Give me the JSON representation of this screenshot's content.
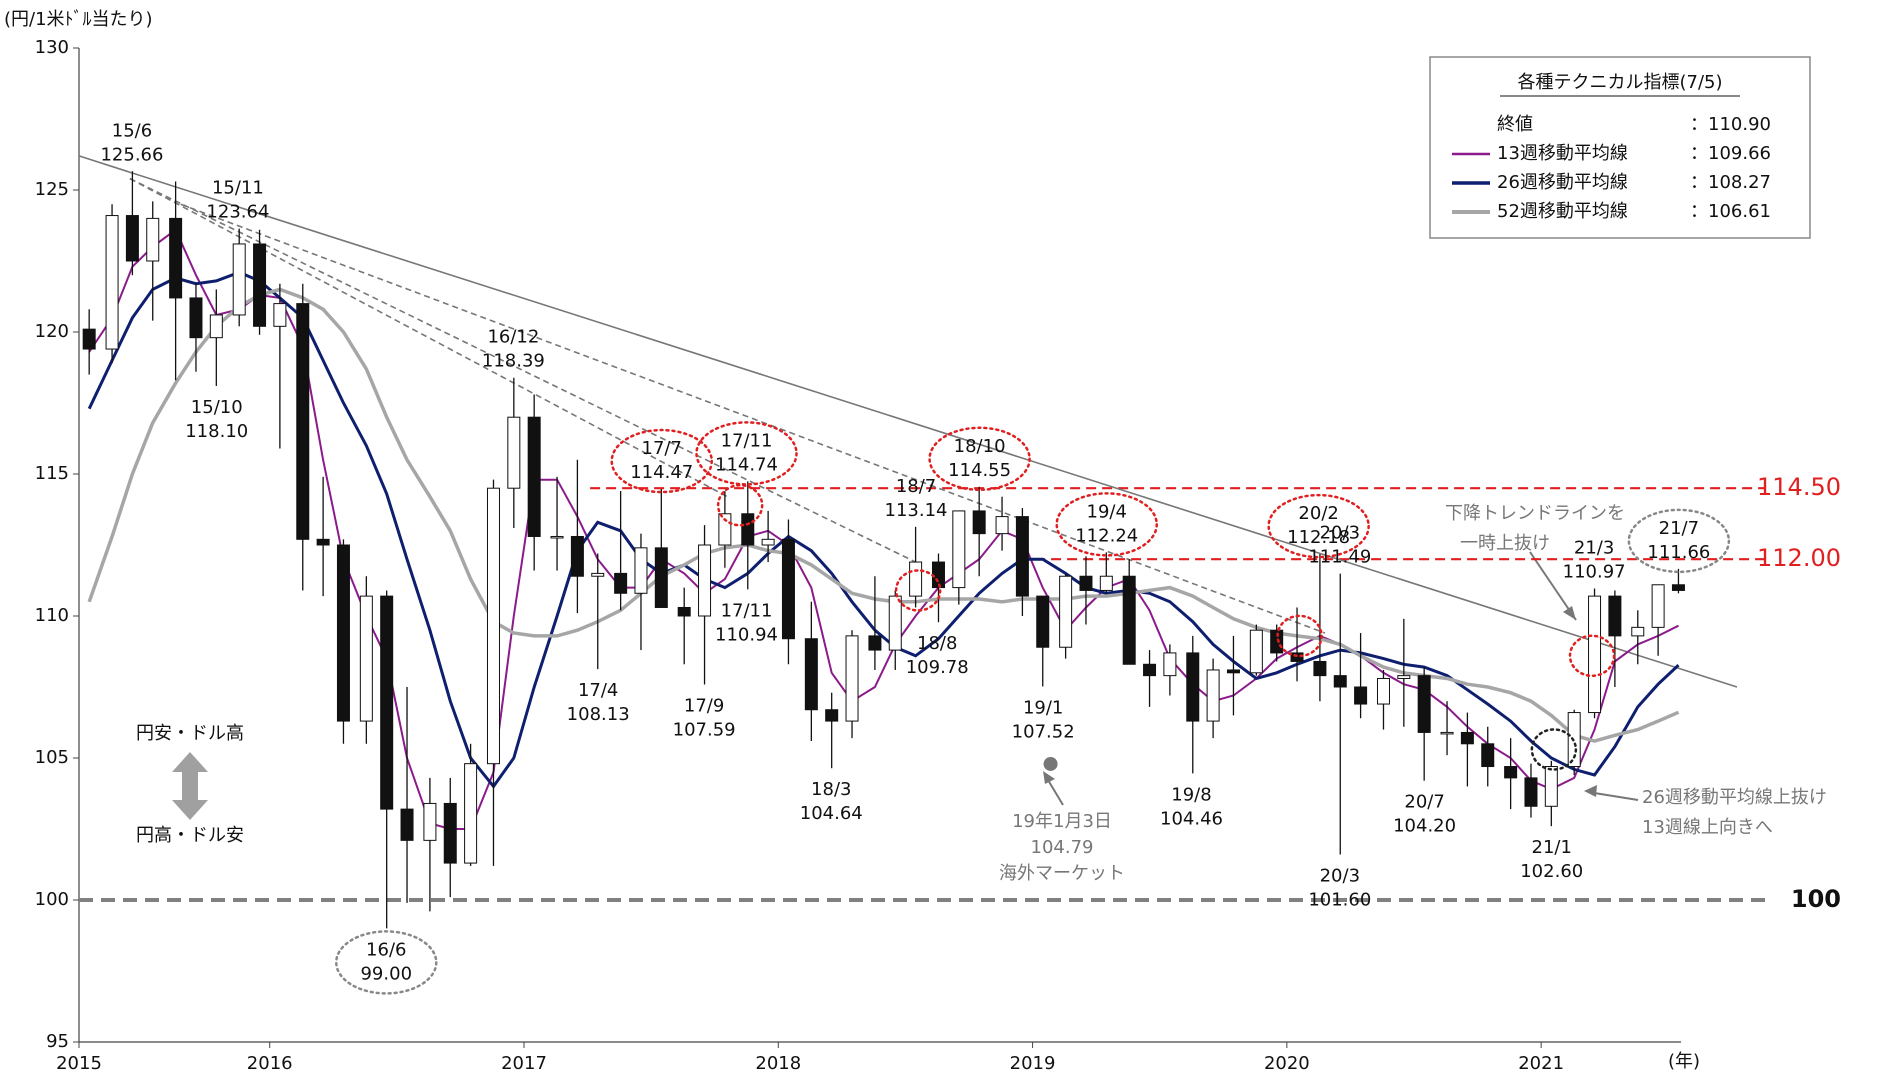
{
  "chart_data": {
    "type": "candlestick",
    "y_unit_label": "(円/1米ﾄﾞﾙ当たり)",
    "x_unit_label": "(年)",
    "xlim": [
      2015.25,
      2021.55
    ],
    "xticks": [
      {
        "value": 2015.25,
        "label": "2015"
      },
      2016,
      2017,
      2018,
      2019,
      2020,
      2021
    ],
    "ylim": [
      95,
      130
    ],
    "yticks": [
      95,
      100,
      105,
      110,
      115,
      120,
      125,
      130
    ],
    "x": [
      2015.29,
      2015.38,
      2015.46,
      2015.54,
      2015.63,
      2015.71,
      2015.79,
      2015.88,
      2015.96,
      2016.04,
      2016.13,
      2016.21,
      2016.29,
      2016.38,
      2016.46,
      2016.54,
      2016.63,
      2016.71,
      2016.79,
      2016.88,
      2016.96,
      2017.04,
      2017.13,
      2017.21,
      2017.29,
      2017.38,
      2017.46,
      2017.54,
      2017.63,
      2017.71,
      2017.79,
      2017.88,
      2017.96,
      2018.04,
      2018.13,
      2018.21,
      2018.29,
      2018.38,
      2018.46,
      2018.54,
      2018.63,
      2018.71,
      2018.79,
      2018.88,
      2018.96,
      2019.04,
      2019.13,
      2019.21,
      2019.29,
      2019.38,
      2019.46,
      2019.54,
      2019.63,
      2019.71,
      2019.79,
      2019.88,
      2019.96,
      2020.04,
      2020.13,
      2020.21,
      2020.29,
      2020.38,
      2020.46,
      2020.54,
      2020.63,
      2020.71,
      2020.79,
      2020.88,
      2020.96,
      2021.04,
      2021.13,
      2021.21,
      2021.29,
      2021.38,
      2021.46,
      2021.54
    ],
    "open": [
      120.1,
      119.4,
      124.1,
      122.5,
      124.0,
      121.2,
      119.8,
      120.6,
      123.1,
      120.2,
      121.0,
      112.7,
      112.5,
      106.3,
      110.7,
      103.2,
      102.1,
      103.4,
      101.3,
      104.8,
      114.5,
      117.0,
      112.8,
      112.8,
      111.4,
      111.5,
      110.8,
      112.4,
      110.3,
      110.0,
      112.5,
      113.6,
      112.5,
      112.7,
      109.2,
      106.7,
      106.3,
      109.3,
      108.8,
      110.7,
      111.9,
      111.0,
      113.7,
      112.9,
      113.5,
      110.7,
      108.9,
      111.4,
      110.9,
      111.4,
      108.3,
      107.9,
      108.7,
      106.3,
      108.1,
      108.0,
      109.5,
      108.7,
      108.4,
      107.9,
      107.5,
      106.9,
      107.8,
      107.9,
      105.9,
      105.9,
      105.5,
      104.7,
      104.3,
      103.3,
      104.7,
      106.6,
      110.7,
      109.3,
      109.6,
      111.1
    ],
    "high": [
      120.8,
      124.5,
      125.66,
      124.6,
      125.3,
      121.7,
      121.5,
      123.64,
      123.6,
      121.7,
      121.7,
      114.9,
      112.7,
      111.4,
      110.9,
      107.5,
      104.3,
      104.3,
      105.5,
      114.8,
      118.39,
      117.8,
      114.9,
      115.5,
      112.2,
      114.4,
      112.9,
      114.47,
      111.0,
      113.2,
      114.4,
      114.74,
      113.7,
      113.4,
      110.5,
      107.3,
      109.5,
      111.4,
      110.9,
      113.14,
      112.2,
      113.7,
      114.55,
      114.2,
      113.8,
      110.7,
      111.5,
      112.1,
      112.24,
      112.0,
      108.8,
      109.0,
      109.3,
      108.5,
      109.3,
      109.7,
      109.7,
      110.3,
      112.18,
      111.49,
      109.4,
      108.1,
      109.9,
      108.2,
      107.0,
      106.6,
      106.1,
      105.7,
      104.8,
      104.9,
      106.7,
      110.97,
      110.9,
      110.2,
      111.1,
      111.66
    ],
    "low": [
      118.5,
      118.9,
      122.0,
      120.4,
      118.3,
      118.6,
      118.1,
      120.2,
      119.9,
      115.9,
      110.9,
      110.7,
      105.5,
      105.5,
      99.0,
      99.9,
      99.6,
      100.1,
      101.2,
      101.2,
      113.1,
      111.6,
      111.6,
      110.1,
      108.13,
      110.2,
      108.8,
      110.6,
      108.3,
      107.59,
      111.7,
      110.94,
      111.9,
      108.3,
      105.6,
      104.64,
      105.7,
      108.1,
      108.1,
      110.3,
      109.78,
      110.4,
      111.4,
      112.3,
      110.0,
      107.52,
      108.5,
      109.7,
      110.8,
      108.3,
      106.8,
      107.2,
      104.46,
      105.7,
      106.5,
      107.9,
      108.4,
      107.7,
      107.0,
      101.6,
      106.4,
      106.0,
      106.1,
      104.2,
      105.1,
      104.0,
      104.0,
      103.2,
      102.9,
      102.6,
      104.4,
      106.4,
      107.5,
      108.3,
      108.6,
      110.8
    ],
    "close": [
      119.4,
      124.1,
      122.5,
      124.0,
      121.2,
      119.8,
      120.6,
      123.1,
      120.2,
      121.0,
      112.7,
      112.5,
      106.3,
      110.7,
      103.2,
      102.1,
      103.4,
      101.3,
      104.8,
      114.5,
      117.0,
      112.8,
      112.8,
      111.4,
      111.5,
      110.8,
      112.4,
      110.3,
      110.0,
      112.5,
      113.6,
      112.5,
      112.7,
      109.2,
      106.7,
      106.3,
      109.3,
      108.8,
      110.7,
      111.9,
      111.0,
      113.7,
      112.9,
      113.5,
      110.7,
      108.9,
      111.4,
      110.9,
      111.4,
      108.3,
      107.9,
      108.7,
      106.3,
      108.1,
      108.0,
      109.5,
      108.7,
      108.4,
      107.9,
      107.5,
      106.9,
      107.8,
      107.9,
      105.9,
      105.9,
      105.5,
      104.7,
      104.3,
      103.3,
      104.7,
      106.6,
      110.7,
      109.3,
      109.6,
      111.1,
      110.9
    ],
    "series": [
      {
        "name": "13週移動平均線",
        "color": "#8b1a8b",
        "width": 2,
        "latest": 109.66,
        "latest_label": "：109.66",
        "values": [
          119.3,
          120.5,
          122.3,
          123,
          123.6,
          122,
          120.6,
          120.8,
          121.3,
          121.2,
          119.5,
          115.5,
          112,
          110,
          108.5,
          105,
          102.7,
          102.5,
          102.5,
          104.5,
          110,
          114.8,
          114.8,
          113.5,
          112,
          111,
          111,
          112,
          111.5,
          110.8,
          111.3,
          112.8,
          113,
          112.5,
          111,
          108,
          107,
          107.5,
          109,
          110,
          111,
          111.5,
          112,
          113,
          112.7,
          111,
          109.5,
          110.3,
          111,
          111.3,
          110.2,
          108.5,
          107.6,
          107,
          107.2,
          107.8,
          108.5,
          108.9,
          109.3,
          109,
          108.6,
          108,
          107.6,
          107.4,
          106.8,
          106.1,
          105.5,
          105,
          104.2,
          103.9,
          104.3,
          106,
          108.4,
          109,
          109.3,
          109.66
        ]
      },
      {
        "name": "26週移動平均線",
        "color": "#0d1f6e",
        "width": 3,
        "latest": 108.27,
        "latest_label": "：108.27",
        "values": [
          117.3,
          119,
          120.5,
          121.5,
          121.9,
          121.7,
          121.8,
          122.1,
          121.8,
          121.2,
          120.5,
          119,
          117.5,
          116,
          114.3,
          112,
          109.5,
          107,
          105,
          104,
          105,
          107.5,
          110,
          112.3,
          113.3,
          113,
          112,
          111.5,
          111.8,
          111.3,
          111,
          111.5,
          112.2,
          112.8,
          112.3,
          111.5,
          110.5,
          109.5,
          108.9,
          108.6,
          109.2,
          110,
          110.8,
          111.5,
          112,
          112,
          111.5,
          111,
          110.8,
          110.9,
          110.8,
          110.5,
          109.8,
          109,
          108.4,
          107.8,
          108,
          108.3,
          108.6,
          108.8,
          108.7,
          108.5,
          108.3,
          108.2,
          107.9,
          107.4,
          106.9,
          106.3,
          105.6,
          105,
          104.6,
          104.4,
          105.4,
          106.8,
          107.6,
          108.27
        ]
      },
      {
        "name": "52週移動平均線",
        "color": "#a6a6a6",
        "width": 3.5,
        "latest": 106.61,
        "latest_label": "：106.61",
        "values": [
          110.5,
          112.8,
          115,
          116.8,
          118.2,
          119.3,
          120.2,
          120.9,
          121.3,
          121.5,
          121.2,
          120.8,
          120,
          118.7,
          117,
          115.5,
          114.2,
          113,
          111.3,
          109.8,
          109.4,
          109.3,
          109.3,
          109.5,
          109.8,
          110.2,
          110.8,
          111.4,
          111.8,
          112.2,
          112.4,
          112.5,
          112.3,
          112.2,
          111.8,
          111.3,
          110.8,
          110.6,
          110.5,
          110.5,
          110.6,
          110.6,
          110.6,
          110.5,
          110.6,
          110.6,
          110.6,
          110.7,
          110.7,
          110.8,
          110.9,
          111,
          110.7,
          110.3,
          109.9,
          109.6,
          109.4,
          109.3,
          109.2,
          109,
          108.6,
          108.2,
          108,
          107.9,
          107.8,
          107.6,
          107.5,
          107.3,
          107,
          106.5,
          105.8,
          105.6,
          105.8,
          106,
          106.3,
          106.61
        ]
      }
    ],
    "legend": {
      "title": "各種テクニカル指標(7/5)",
      "close_name": "終値",
      "close_value": 110.9,
      "close_label": "：110.90"
    },
    "highs": [
      {
        "date": "15/6",
        "value": 125.66,
        "label": "125.66"
      },
      {
        "date": "15/11",
        "value": 123.64,
        "label": "123.64"
      },
      {
        "date": "16/12",
        "value": 118.39,
        "label": "118.39"
      },
      {
        "date": "17/7",
        "value": 114.47,
        "label": "114.47",
        "circle": "#e02020"
      },
      {
        "date": "17/11",
        "value": 114.74,
        "label": "114.74",
        "circle": "#e02020"
      },
      {
        "date": "18/7",
        "value": 113.14,
        "label": "113.14"
      },
      {
        "date": "18/10",
        "value": 114.55,
        "label": "114.55",
        "circle": "#e02020"
      },
      {
        "date": "19/4",
        "value": 112.24,
        "label": "112.24",
        "circle": "#e02020"
      },
      {
        "date": "20/2",
        "value": 112.18,
        "label": "112.18",
        "circle": "#e02020"
      },
      {
        "date": "20/3",
        "value": 111.49,
        "label": "111.49"
      },
      {
        "date": "21/3",
        "value": 110.97,
        "label": "110.97"
      },
      {
        "date": "21/7",
        "value": 111.66,
        "label": "111.66",
        "circle": "#888888"
      }
    ],
    "lows": [
      {
        "date": "15/10",
        "value": 118.1,
        "label": "118.10"
      },
      {
        "date": "16/6",
        "value": 99,
        "label": "99.00",
        "circle": "#888888"
      },
      {
        "date": "17/4",
        "value": 108.13,
        "label": "108.13"
      },
      {
        "date": "17/9",
        "value": 107.59,
        "label": "107.59"
      },
      {
        "date": "17/11",
        "value": 110.94,
        "label": "110.94"
      },
      {
        "date": "18/3",
        "value": 104.64,
        "label": "104.64"
      },
      {
        "date": "18/8",
        "value": 109.78,
        "label": "109.78"
      },
      {
        "date": "19/1",
        "value": 107.52,
        "label": "107.52"
      },
      {
        "date": "19/8",
        "value": 104.46,
        "label": "104.46"
      },
      {
        "date": "20/3",
        "value": 101.6,
        "label": "101.60"
      },
      {
        "date": "20/7",
        "value": 104.2,
        "label": "104.20"
      },
      {
        "date": "21/1",
        "value": 102.6,
        "label": "102.60"
      }
    ],
    "reference_lines": [
      {
        "value": 114.5,
        "label": "114.50",
        "color": "#e02020",
        "start": 2017.26
      },
      {
        "value": 112,
        "label": "112.00",
        "color": "#e02020",
        "start": 2019.01
      },
      {
        "value": 100,
        "label": "100",
        "color": "#808080",
        "start": 2015.25
      }
    ],
    "trend_lines": [
      {
        "from": [
          2015.25,
          126.2
        ],
        "to": [
          2021.77,
          107.5
        ],
        "dashed": false
      },
      {
        "from": [
          2015.45,
          125.4
        ],
        "to": [
          2017.8,
          114.2
        ],
        "dashed": true
      },
      {
        "from": [
          2015.45,
          125.4
        ],
        "to": [
          2018.54,
          111.9
        ],
        "dashed": true
      },
      {
        "from": [
          2015.65,
          124.5
        ],
        "to": [
          2020.15,
          109.4
        ],
        "dashed": true
      }
    ],
    "circled_points": [
      {
        "x": 2017.85,
        "y": 113.9,
        "color": "#e02020"
      },
      {
        "x": 2018.55,
        "y": 110.9,
        "color": "#e02020"
      },
      {
        "x": 2020.05,
        "y": 109.3,
        "color": "#e02020"
      },
      {
        "x": 2021.2,
        "y": 108.6,
        "color": "#e02020"
      },
      {
        "x": 2021.05,
        "y": 105.3,
        "color": "#222222"
      }
    ],
    "flash_crash": {
      "x": 2019.0,
      "value": 104.79,
      "date": "19年1月3日",
      "note": "海外マーケット"
    },
    "callouts": {
      "trend_break": [
        "下降トレンドラインを",
        "一時上抜け"
      ],
      "ma_break": [
        "26週移動平均線上抜け",
        "13週線上向きへ"
      ]
    },
    "direction_labels": {
      "up": "円安・ドル高",
      "down": "円高・ドル安"
    }
  }
}
